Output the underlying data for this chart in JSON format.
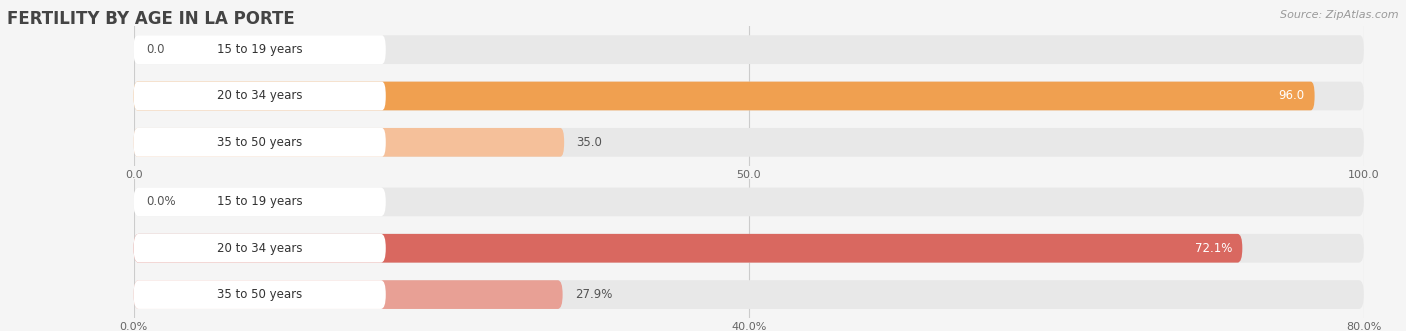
{
  "title": "FERTILITY BY AGE IN LA PORTE",
  "source": "Source: ZipAtlas.com",
  "top_chart": {
    "categories": [
      "15 to 19 years",
      "20 to 34 years",
      "35 to 50 years"
    ],
    "values": [
      0.0,
      96.0,
      35.0
    ],
    "max_value": 100.0,
    "tick_values": [
      0.0,
      50.0,
      100.0
    ],
    "tick_labels": [
      "0.0",
      "50.0",
      "100.0"
    ],
    "bar_colors": [
      "#f5c09a",
      "#f0a050",
      "#f5c09a"
    ],
    "bar_track_color": "#e8e8e8",
    "label_bg_color": "#ffffff",
    "value_labels": [
      "0.0",
      "96.0",
      "35.0"
    ],
    "value_label_inside": [
      false,
      true,
      false
    ]
  },
  "bottom_chart": {
    "categories": [
      "15 to 19 years",
      "20 to 34 years",
      "35 to 50 years"
    ],
    "values": [
      0.0,
      72.1,
      27.9
    ],
    "max_value": 80.0,
    "tick_values": [
      0.0,
      40.0,
      80.0
    ],
    "tick_labels": [
      "0.0%",
      "40.0%",
      "80.0%"
    ],
    "bar_colors": [
      "#e8a095",
      "#d96860",
      "#e8a095"
    ],
    "bar_track_color": "#e8e8e8",
    "label_bg_color": "#ffffff",
    "value_labels": [
      "0.0%",
      "72.1%",
      "27.9%"
    ],
    "value_label_inside": [
      false,
      true,
      false
    ]
  },
  "background_color": "#f5f5f5",
  "title_fontsize": 12,
  "label_fontsize": 8.5,
  "tick_fontsize": 8,
  "source_fontsize": 8,
  "title_color": "#444444",
  "label_text_color": "#333333",
  "tick_color": "#666666",
  "value_label_color_inside": "#ffffff",
  "value_label_color_outside": "#555555"
}
